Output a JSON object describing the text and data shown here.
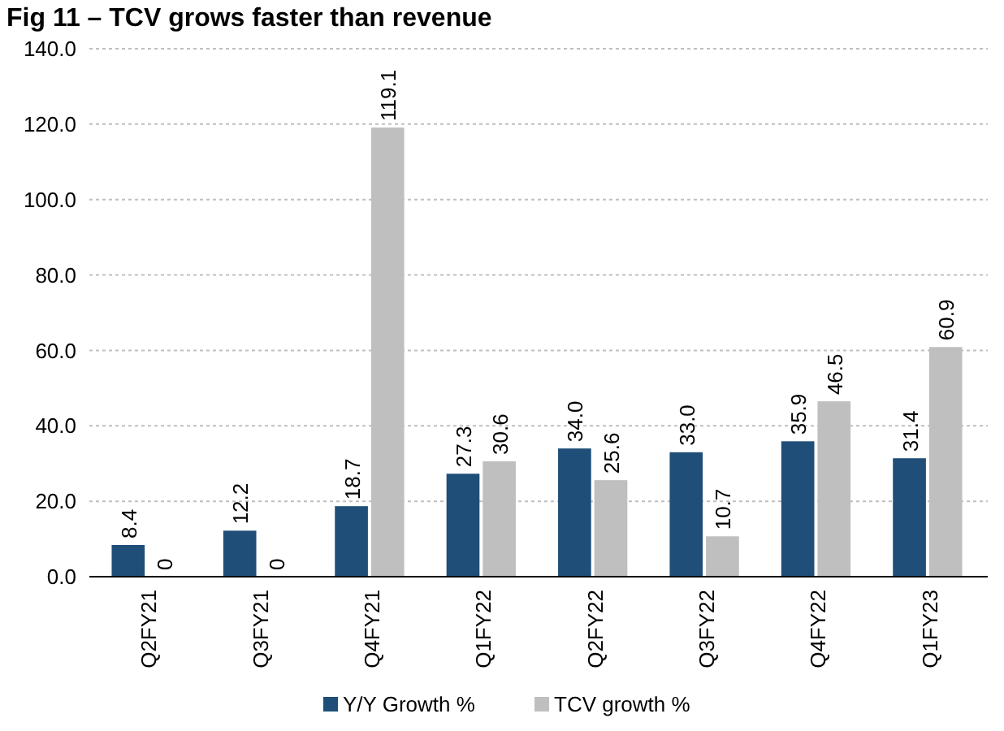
{
  "chart_data": {
    "type": "bar",
    "title": "Fig 11 – TCV grows faster than revenue",
    "categories": [
      "Q2FY21",
      "Q3FY21",
      "Q4FY21",
      "Q1FY22",
      "Q2FY22",
      "Q3FY22",
      "Q4FY22",
      "Q1FY23"
    ],
    "series": [
      {
        "name": "Y/Y Growth %",
        "color": "#1f4e79",
        "values": [
          8.4,
          12.2,
          18.7,
          27.3,
          34.0,
          33.0,
          35.9,
          31.4
        ],
        "value_labels": [
          "8.4",
          "12.2",
          "18.7",
          "27.3",
          "34.0",
          "33.0",
          "35.9",
          "31.4"
        ]
      },
      {
        "name": "TCV growth %",
        "color": "#bfbfbf",
        "values": [
          0,
          0,
          119.1,
          30.6,
          25.6,
          10.7,
          46.5,
          60.9
        ],
        "value_labels": [
          "0",
          "0",
          "119.1",
          "30.6",
          "25.6",
          "10.7",
          "46.5",
          "60.9"
        ]
      }
    ],
    "ylim": [
      0,
      140
    ],
    "yticks": [
      {
        "value": 0,
        "label": "0.0"
      },
      {
        "value": 20,
        "label": "20.0"
      },
      {
        "value": 40,
        "label": "40.0"
      },
      {
        "value": 60,
        "label": "60.0"
      },
      {
        "value": 80,
        "label": "80.0"
      },
      {
        "value": 100,
        "label": "100.0"
      },
      {
        "value": 120,
        "label": "120.0"
      },
      {
        "value": 140,
        "label": "140.0"
      }
    ],
    "grid": "y",
    "legend": "bottom"
  }
}
